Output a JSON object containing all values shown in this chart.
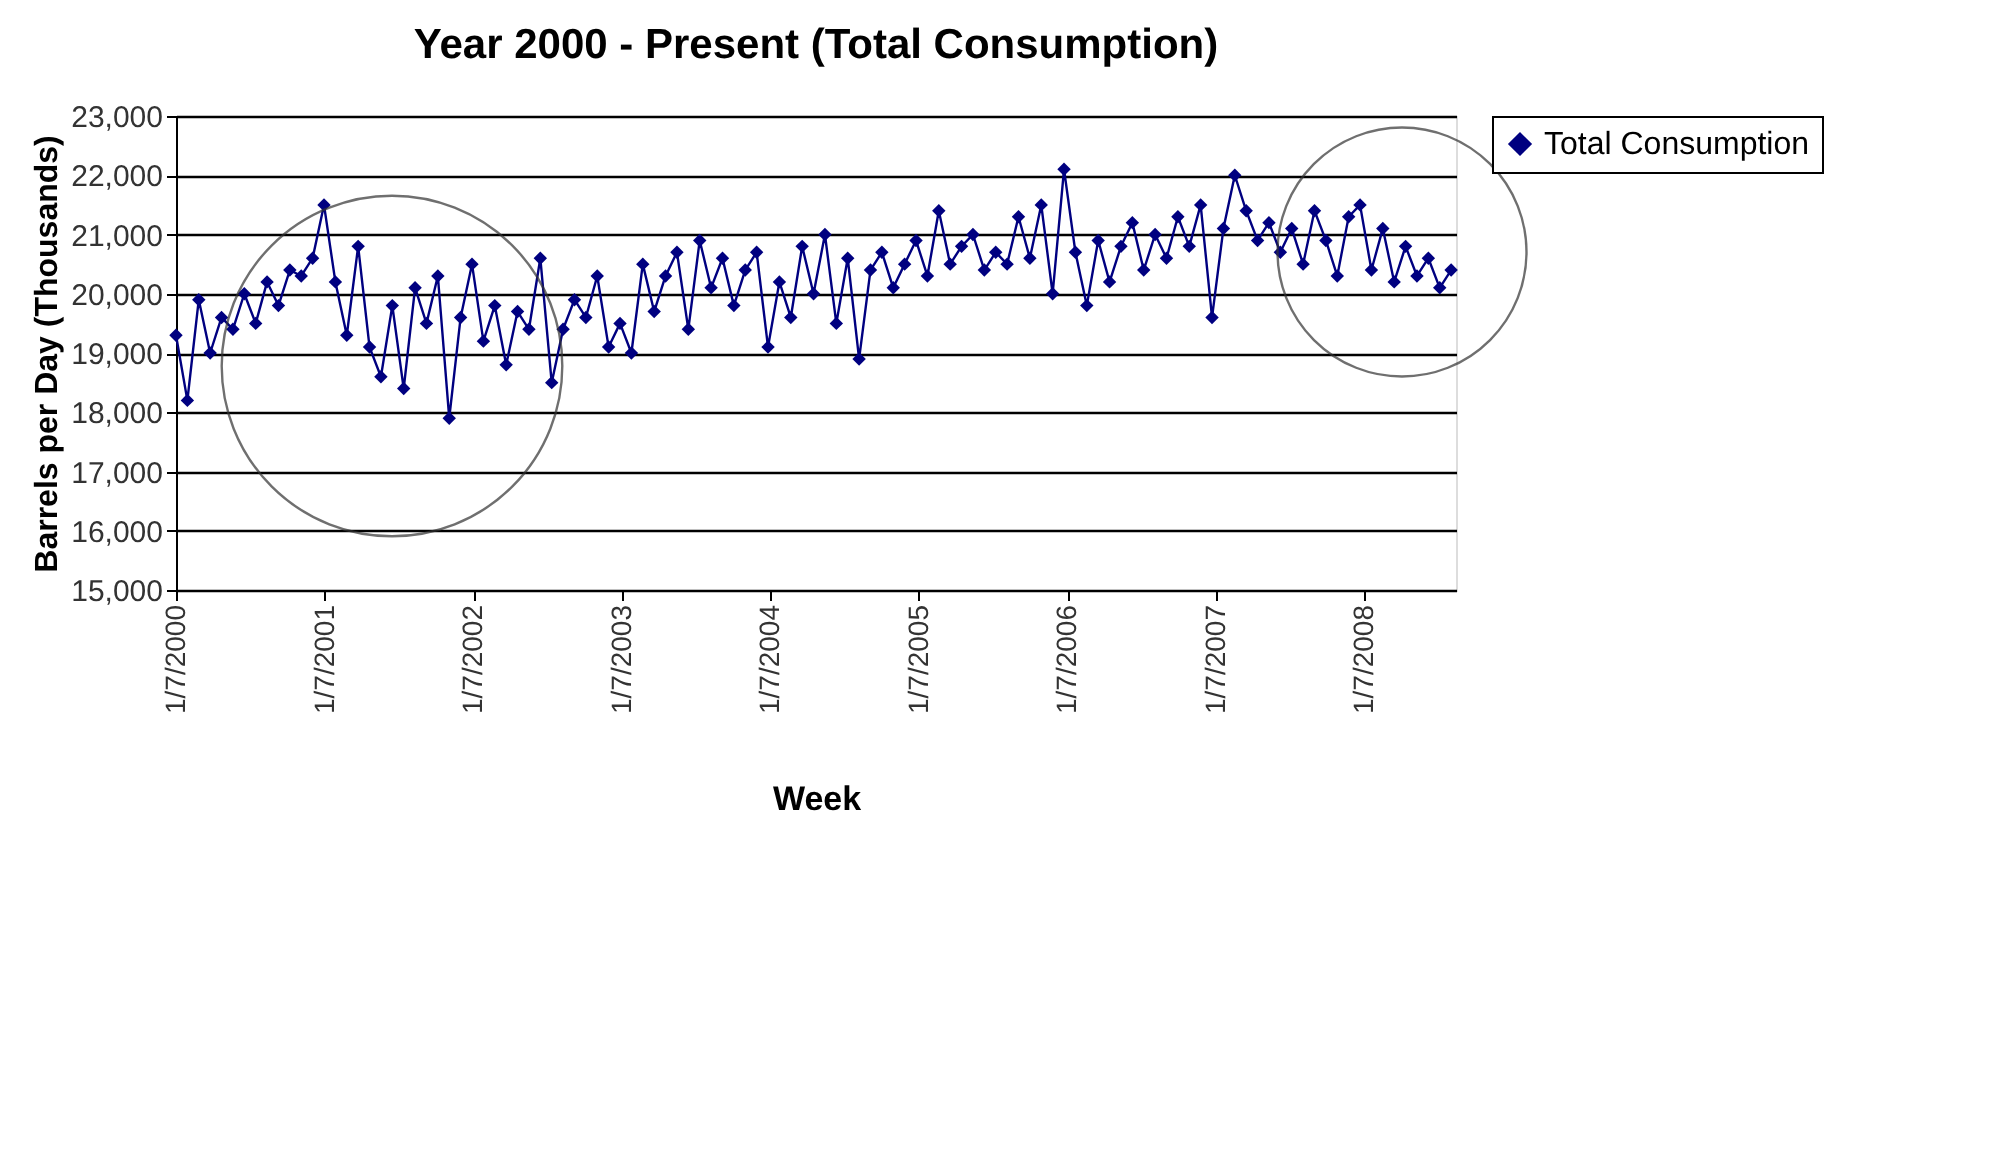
{
  "chart_data": {
    "type": "line",
    "title": "Year 2000 - Present (Total Consumption)",
    "xlabel": "Week",
    "ylabel": "Barrels per Day (Thousands)",
    "x": [
      "2000-01-07",
      "2000-02-04",
      "2000-03-03",
      "2000-03-31",
      "2000-04-28",
      "2000-05-26",
      "2000-06-23",
      "2000-07-21",
      "2000-08-18",
      "2000-09-15",
      "2000-10-13",
      "2000-11-10",
      "2000-12-08",
      "2001-01-05",
      "2001-02-02",
      "2001-03-02",
      "2001-03-30",
      "2001-04-27",
      "2001-05-25",
      "2001-06-22",
      "2001-07-20",
      "2001-08-17",
      "2001-09-14",
      "2001-10-12",
      "2001-11-09",
      "2001-12-07",
      "2002-01-04",
      "2002-02-01",
      "2002-03-01",
      "2002-03-29",
      "2002-04-26",
      "2002-05-24",
      "2002-06-21",
      "2002-07-19",
      "2002-08-16",
      "2002-09-13",
      "2002-10-11",
      "2002-11-08",
      "2002-12-06",
      "2003-01-03",
      "2003-01-31",
      "2003-02-28",
      "2003-03-28",
      "2003-04-25",
      "2003-05-23",
      "2003-06-20",
      "2003-07-18",
      "2003-08-15",
      "2003-09-12",
      "2003-10-10",
      "2003-11-07",
      "2003-12-05",
      "2004-01-02",
      "2004-01-30",
      "2004-02-27",
      "2004-03-26",
      "2004-04-23",
      "2004-05-21",
      "2004-06-18",
      "2004-07-16",
      "2004-08-13",
      "2004-09-10",
      "2004-10-08",
      "2004-11-05",
      "2004-12-03",
      "2004-12-31",
      "2005-01-28",
      "2005-02-25",
      "2005-03-25",
      "2005-04-22",
      "2005-05-20",
      "2005-06-17",
      "2005-07-15",
      "2005-08-12",
      "2005-09-09",
      "2005-10-07",
      "2005-11-04",
      "2005-12-02",
      "2005-12-30",
      "2006-01-27",
      "2006-02-24",
      "2006-03-24",
      "2006-04-21",
      "2006-05-19",
      "2006-06-16",
      "2006-07-14",
      "2006-08-11",
      "2006-09-08",
      "2006-10-06",
      "2006-11-03",
      "2006-12-01",
      "2006-12-29",
      "2007-01-26",
      "2007-02-23",
      "2007-03-23",
      "2007-04-20",
      "2007-05-18",
      "2007-06-15",
      "2007-07-13",
      "2007-08-10",
      "2007-09-07",
      "2007-10-05",
      "2007-11-02",
      "2007-11-30",
      "2007-12-28",
      "2008-01-25",
      "2008-02-22",
      "2008-03-21",
      "2008-04-18",
      "2008-05-16",
      "2008-06-13",
      "2008-07-11",
      "2008-08-08"
    ],
    "series": [
      {
        "name": "Total Consumption",
        "color": "#000080",
        "values": [
          19300,
          18200,
          19900,
          19000,
          19600,
          19400,
          20000,
          19500,
          20200,
          19800,
          20400,
          20300,
          20600,
          21500,
          20200,
          19300,
          20800,
          19100,
          18600,
          19800,
          18400,
          20100,
          19500,
          20300,
          17900,
          19600,
          20500,
          19200,
          19800,
          18800,
          19700,
          19400,
          20600,
          18500,
          19400,
          19900,
          19600,
          20300,
          19100,
          19500,
          19000,
          20500,
          19700,
          20300,
          20700,
          19400,
          20900,
          20100,
          20600,
          19800,
          20400,
          20700,
          19100,
          20200,
          19600,
          20800,
          20000,
          21000,
          19500,
          20600,
          18900,
          20400,
          20700,
          20100,
          20500,
          20900,
          20300,
          21400,
          20500,
          20800,
          21000,
          20400,
          20700,
          20500,
          21300,
          20600,
          21500,
          20000,
          22100,
          20700,
          19800,
          20900,
          20200,
          20800,
          21200,
          20400,
          21000,
          20600,
          21300,
          20800,
          21500,
          19600,
          21100,
          22000,
          21400,
          20900,
          21200,
          20700,
          21100,
          20500,
          21400,
          20900,
          20300,
          21300,
          21500,
          20400,
          21100,
          20200,
          20800,
          20300,
          20600,
          20100,
          20400
        ]
      }
    ],
    "xlim": [
      "2000-01-07",
      "2008-08-20"
    ],
    "xticks": [
      {
        "value": "2000-01-07",
        "label": "1/7/2000"
      },
      {
        "value": "2001-01-07",
        "label": "1/7/2001"
      },
      {
        "value": "2002-01-07",
        "label": "1/7/2002"
      },
      {
        "value": "2003-01-07",
        "label": "1/7/2003"
      },
      {
        "value": "2004-01-07",
        "label": "1/7/2004"
      },
      {
        "value": "2005-01-07",
        "label": "1/7/2005"
      },
      {
        "value": "2006-01-07",
        "label": "1/7/2006"
      },
      {
        "value": "2007-01-07",
        "label": "1/7/2007"
      },
      {
        "value": "2008-01-07",
        "label": "1/7/2008"
      }
    ],
    "ylim": [
      15000,
      23000
    ],
    "yticks": [
      {
        "value": 15000,
        "label": "15,000"
      },
      {
        "value": 16000,
        "label": "16,000"
      },
      {
        "value": 17000,
        "label": "17,000"
      },
      {
        "value": 18000,
        "label": "18,000"
      },
      {
        "value": 19000,
        "label": "19,000"
      },
      {
        "value": 20000,
        "label": "20,000"
      },
      {
        "value": 21000,
        "label": "21,000"
      },
      {
        "value": 22000,
        "label": "22,000"
      },
      {
        "value": 23000,
        "label": "23,000"
      }
    ],
    "grid": "y",
    "legend": "right",
    "marker": "diamond",
    "line_style": "solid"
  }
}
